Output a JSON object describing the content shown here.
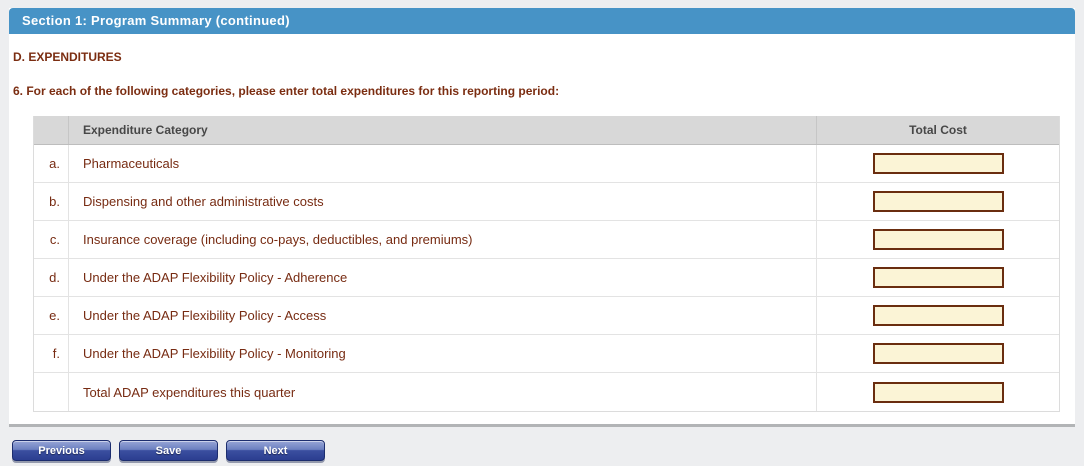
{
  "header": {
    "title": "Section 1: Program Summary (continued)"
  },
  "section": {
    "heading": "D. EXPENDITURES",
    "question": "6. For each of the following categories, please enter total expenditures for this reporting period:"
  },
  "table": {
    "columns": {
      "category": "Expenditure Category",
      "total_cost": "Total Cost"
    },
    "rows": [
      {
        "letter": "a.",
        "category": "Pharmaceuticals",
        "value": ""
      },
      {
        "letter": "b.",
        "category": "Dispensing and other administrative costs",
        "value": ""
      },
      {
        "letter": "c.",
        "category": "Insurance coverage (including co-pays, deductibles, and premiums)",
        "value": ""
      },
      {
        "letter": "d.",
        "category": "Under the ADAP Flexibility Policy - Adherence",
        "value": ""
      },
      {
        "letter": "e.",
        "category": "Under the ADAP Flexibility Policy - Access",
        "value": ""
      },
      {
        "letter": "f.",
        "category": "Under the ADAP Flexibility Policy - Monitoring",
        "value": ""
      },
      {
        "letter": "",
        "category": "Total ADAP expenditures this quarter",
        "value": ""
      }
    ]
  },
  "buttons": {
    "previous": "Previous",
    "save": "Save",
    "next": "Next"
  },
  "colors": {
    "title_bar": "#4793c6",
    "heading_text": "#7b2d11",
    "input_background": "#fbf4d6",
    "input_border": "#6a2d0f",
    "button_face": "#2b3e90",
    "page_background": "#edeef0"
  }
}
